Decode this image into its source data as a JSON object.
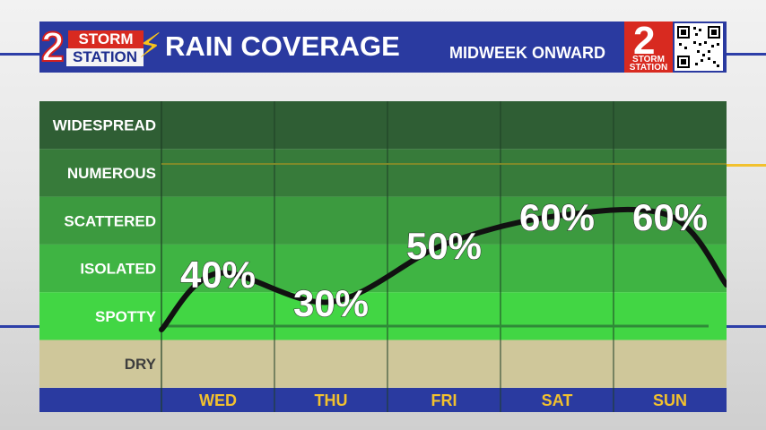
{
  "header": {
    "logo_number": "2",
    "logo_line1": "STORM",
    "logo_line2": "STATION",
    "title": "RAIN COVERAGE",
    "subtitle": "MIDWEEK ONWARD",
    "right_logo_number": "2",
    "right_logo_line1": "STORM",
    "right_logo_line2": "STATION"
  },
  "colors": {
    "header_bg": "#2a3aa0",
    "brand_red": "#d82a20",
    "accent_gold": "#f2c12e",
    "curve": "#111111",
    "day_label": "#f2c12e",
    "bands": [
      "#2f5e34",
      "#377b3a",
      "#3c9a3f",
      "#3fb443",
      "#42d644",
      "#cfc79a"
    ]
  },
  "chart_data": {
    "type": "line",
    "categories": [
      "WED",
      "THU",
      "FRI",
      "SAT",
      "SUN"
    ],
    "levels": [
      "WIDESPREAD",
      "NUMEROUS",
      "SCATTERED",
      "ISOLATED",
      "SPOTTY",
      "DRY"
    ],
    "series": [
      {
        "values": [
          40,
          30,
          50,
          60,
          60
        ],
        "labels": [
          "40%",
          "30%",
          "50%",
          "60%",
          "60%"
        ]
      }
    ],
    "ylim": [
      0,
      100
    ],
    "grid": true
  }
}
